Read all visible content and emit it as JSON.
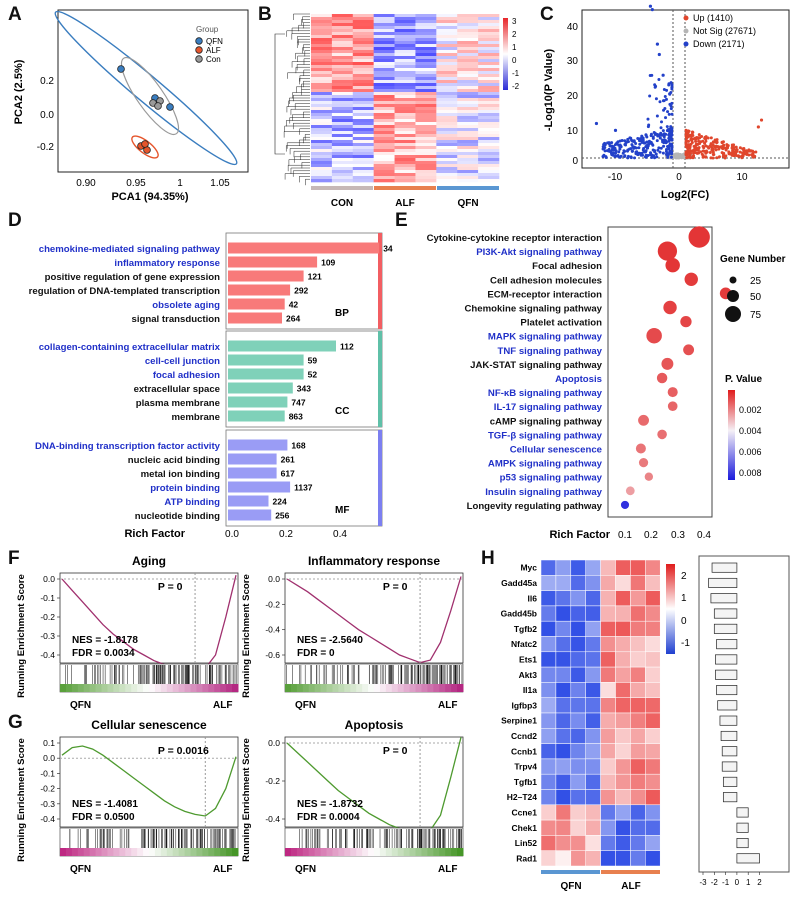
{
  "panel_labels": [
    "A",
    "B",
    "C",
    "D",
    "E",
    "F",
    "G",
    "H"
  ],
  "pca": {
    "legend_title": "Group",
    "groups": [
      {
        "name": "QFN",
        "color": "#3a7dbf"
      },
      {
        "name": "ALF",
        "color": "#e5552c"
      },
      {
        "name": "Con",
        "color": "#9a9a9a"
      }
    ],
    "xlabel": "PCA1 (94.35%)",
    "ylabel": "PCA2 (2.5%)",
    "xticks": [
      "0.90",
      "0.95",
      "1",
      "1.05"
    ],
    "yticks": [
      "0.2",
      "0.0",
      "-0.2"
    ]
  },
  "heatmap": {
    "groups": [
      "CON",
      "ALF",
      "QFN"
    ],
    "legend_ticks": [
      "3",
      "2",
      "1",
      "0",
      "-1",
      "-2"
    ]
  },
  "volcano": {
    "legend": [
      {
        "label": "Up (1410)",
        "color": "#e0462c"
      },
      {
        "label": "Not Sig (27671)",
        "color": "#b5b5b5"
      },
      {
        "label": "Down (2171)",
        "color": "#2341c9"
      }
    ],
    "xlabel": "Log2(FC)",
    "ylabel": "-Log10(P Value)",
    "xticks": [
      "-10",
      "0",
      "10"
    ],
    "yticks": [
      "0",
      "10",
      "20",
      "30",
      "40"
    ]
  },
  "go": {
    "xlabel": "Rich Factor",
    "xticks": [
      "0.0",
      "0.2",
      "0.4"
    ],
    "categories": [
      {
        "tag": "BP",
        "color": "#f87a7a",
        "edge": "#f25e62",
        "items": [
          {
            "label": "chemokine-mediated signaling pathway",
            "count": "34",
            "rich": 0.56,
            "highlight": true
          },
          {
            "label": "inflammatory response",
            "count": "109",
            "rich": 0.33,
            "highlight": true
          },
          {
            "label": "positive regulation of gene expression",
            "count": "121",
            "rich": 0.28,
            "highlight": false
          },
          {
            "label": "regulation of DNA-templated transcription",
            "count": "292",
            "rich": 0.23,
            "highlight": false
          },
          {
            "label": "obsolete aging",
            "count": "42",
            "rich": 0.21,
            "highlight": true
          },
          {
            "label": "signal transduction",
            "count": "264",
            "rich": 0.2,
            "highlight": false
          }
        ]
      },
      {
        "tag": "CC",
        "color": "#7fd1b9",
        "edge": "#5fc0a8",
        "items": [
          {
            "label": "collagen-containing extracellular matrix",
            "count": "112",
            "rich": 0.4,
            "highlight": true
          },
          {
            "label": "cell-cell junction",
            "count": "59",
            "rich": 0.28,
            "highlight": true
          },
          {
            "label": "focal adhesion",
            "count": "52",
            "rich": 0.28,
            "highlight": true
          },
          {
            "label": "extracellular space",
            "count": "343",
            "rich": 0.24,
            "highlight": false
          },
          {
            "label": "plasma membrane",
            "count": "747",
            "rich": 0.22,
            "highlight": false
          },
          {
            "label": "membrane",
            "count": "863",
            "rich": 0.21,
            "highlight": false
          }
        ]
      },
      {
        "tag": "MF",
        "color": "#9a9cf5",
        "edge": "#7c7ff0",
        "items": [
          {
            "label": "DNA-binding transcription factor activity",
            "count": "168",
            "rich": 0.22,
            "highlight": true
          },
          {
            "label": "nucleic acid binding",
            "count": "261",
            "rich": 0.18,
            "highlight": false
          },
          {
            "label": "metal ion binding",
            "count": "617",
            "rich": 0.18,
            "highlight": false
          },
          {
            "label": "protein binding",
            "count": "1137",
            "rich": 0.23,
            "highlight": true
          },
          {
            "label": "ATP binding",
            "count": "224",
            "rich": 0.15,
            "highlight": true
          },
          {
            "label": "nucleotide binding",
            "count": "256",
            "rich": 0.16,
            "highlight": false
          }
        ]
      }
    ]
  },
  "kegg": {
    "xlabel": "Rich Factor",
    "xticks": [
      "0.1",
      "0.2",
      "0.3",
      "0.4"
    ],
    "size_title": "Gene Number",
    "size_ticks": [
      "25",
      "50",
      "75"
    ],
    "color_title": "P. Value",
    "color_ticks": [
      "0.002",
      "0.004",
      "0.006",
      "0.008"
    ],
    "pathways": [
      {
        "label": "Cytokine-cytokine receptor interaction",
        "rich": 0.38,
        "genes": 78,
        "p": 0.0005,
        "highlight": false
      },
      {
        "label": "PI3K-Akt signaling pathway",
        "rich": 0.26,
        "genes": 68,
        "p": 0.0005,
        "highlight": true
      },
      {
        "label": "Focal adhesion",
        "rich": 0.28,
        "genes": 45,
        "p": 0.0005,
        "highlight": false
      },
      {
        "label": "Cell adhesion molecules",
        "rich": 0.35,
        "genes": 40,
        "p": 0.0006,
        "highlight": false
      },
      {
        "label": "ECM-receptor interaction",
        "rich": 0.48,
        "genes": 32,
        "p": 0.0006,
        "highlight": false
      },
      {
        "label": "Chemokine signaling pathway",
        "rich": 0.27,
        "genes": 40,
        "p": 0.0007,
        "highlight": false
      },
      {
        "label": "Platelet activation",
        "rich": 0.33,
        "genes": 30,
        "p": 0.0008,
        "highlight": false
      },
      {
        "label": "MAPK signaling pathway",
        "rich": 0.21,
        "genes": 50,
        "p": 0.0009,
        "highlight": true
      },
      {
        "label": "TNF signaling pathway",
        "rich": 0.34,
        "genes": 28,
        "p": 0.001,
        "highlight": true
      },
      {
        "label": "JAK-STAT signaling pathway",
        "rich": 0.26,
        "genes": 33,
        "p": 0.0011,
        "highlight": false
      },
      {
        "label": "Apoptosis",
        "rich": 0.24,
        "genes": 26,
        "p": 0.0012,
        "highlight": true
      },
      {
        "label": "NF-κB signaling pathway",
        "rich": 0.28,
        "genes": 24,
        "p": 0.0013,
        "highlight": true
      },
      {
        "label": "IL-17 signaling pathway",
        "rich": 0.28,
        "genes": 22,
        "p": 0.0014,
        "highlight": true
      },
      {
        "label": "cAMP signaling pathway",
        "rich": 0.17,
        "genes": 28,
        "p": 0.0015,
        "highlight": false
      },
      {
        "label": "TGF-β signaling pathway",
        "rich": 0.24,
        "genes": 22,
        "p": 0.0016,
        "highlight": true
      },
      {
        "label": "Cellular senescence",
        "rich": 0.16,
        "genes": 24,
        "p": 0.0017,
        "highlight": true
      },
      {
        "label": "AMPK signaling pathway",
        "rich": 0.17,
        "genes": 20,
        "p": 0.0018,
        "highlight": true
      },
      {
        "label": "p53 signaling pathway",
        "rich": 0.19,
        "genes": 16,
        "p": 0.002,
        "highlight": true
      },
      {
        "label": "Insulin signaling pathway",
        "rich": 0.12,
        "genes": 18,
        "p": 0.0025,
        "highlight": true
      },
      {
        "label": "Longevity regulating pathway",
        "rich": 0.1,
        "genes": 15,
        "p": 0.0085,
        "highlight": false
      }
    ]
  },
  "gsea": {
    "ylabel": "Running Enrichment Score",
    "plots": [
      {
        "title": "Aging",
        "p": "P = 0",
        "nes": "NES = -1.8178",
        "fdr": "FDR = 0.0034",
        "color": "#a0306e",
        "yticks": [
          "0.0",
          "-0.1",
          "-0.2",
          "-0.3",
          "-0.4"
        ],
        "left": "QFN",
        "right": "ALF",
        "profile": [
          0,
          -0.06,
          -0.12,
          -0.18,
          -0.24,
          -0.29,
          -0.33,
          -0.37,
          -0.4,
          -0.43,
          -0.45,
          -0.47,
          -0.48,
          -0.49,
          -0.47,
          -0.4,
          -0.2,
          0.02
        ]
      },
      {
        "title": "Inflammatory response",
        "p": "P = 0",
        "nes": "NES = -2.5640",
        "fdr": "FDR = 0",
        "color": "#a0306e",
        "yticks": [
          "0.0",
          "-0.2",
          "-0.4",
          "-0.6"
        ],
        "left": "QFN",
        "right": "ALF",
        "profile": [
          0,
          -0.05,
          -0.1,
          -0.16,
          -0.22,
          -0.28,
          -0.34,
          -0.4,
          -0.45,
          -0.5,
          -0.55,
          -0.6,
          -0.63,
          -0.66,
          -0.64,
          -0.5,
          -0.25,
          0.02
        ]
      },
      {
        "title": "Cellular senescence",
        "p": "P = 0.0016",
        "nes": "NES = -1.4081",
        "fdr": "FDR = 0.0500",
        "color": "#4e9a2f",
        "yticks": [
          "0.1",
          "0.0",
          "-0.1",
          "-0.2",
          "-0.3",
          "-0.4"
        ],
        "left": "QFN",
        "right": "ALF",
        "profile": [
          0.02,
          0.07,
          0.08,
          0.06,
          0.02,
          -0.03,
          -0.08,
          -0.13,
          -0.18,
          -0.23,
          -0.28,
          -0.32,
          -0.35,
          -0.37,
          -0.38,
          -0.33,
          -0.2,
          0.01
        ]
      },
      {
        "title": "Apoptosis",
        "p": "P = 0",
        "nes": "NES = -1.8732",
        "fdr": "FDR = 0.0004",
        "color": "#4e9a2f",
        "yticks": [
          "0.0",
          "-0.2",
          "-0.4"
        ],
        "left": "QFN",
        "right": "ALF",
        "profile": [
          0,
          -0.05,
          -0.1,
          -0.15,
          -0.2,
          -0.25,
          -0.29,
          -0.33,
          -0.37,
          -0.4,
          -0.43,
          -0.45,
          -0.47,
          -0.48,
          -0.46,
          -0.38,
          -0.18,
          0.03
        ]
      }
    ]
  },
  "gene_heatmap": {
    "genes": [
      "Myc",
      "Gadd45a",
      "Il6",
      "Gadd45b",
      "Tgfb2",
      "Nfatc2",
      "Ets1",
      "Akt3",
      "Il1a",
      "Igfbp3",
      "Serpine1",
      "Ccnd2",
      "Ccnb1",
      "Trpv4",
      "Tgfb1",
      "H2–T24",
      "Ccne1",
      "Chek1",
      "Lin52",
      "Rad1"
    ],
    "groups": [
      "QFN",
      "ALF"
    ],
    "legend_ticks": [
      "2",
      "1",
      "0",
      "-1"
    ],
    "bar_ticks": [
      "-3",
      "-2",
      "-1",
      "0",
      "1",
      "2"
    ],
    "log2fc": [
      -2.2,
      -2.5,
      -2.3,
      -2.0,
      -2.0,
      -1.8,
      -1.9,
      -1.9,
      -1.8,
      -1.7,
      -1.5,
      -1.4,
      -1.3,
      -1.3,
      -1.2,
      -1.2,
      1.0,
      1.0,
      1.0,
      2.0
    ]
  }
}
